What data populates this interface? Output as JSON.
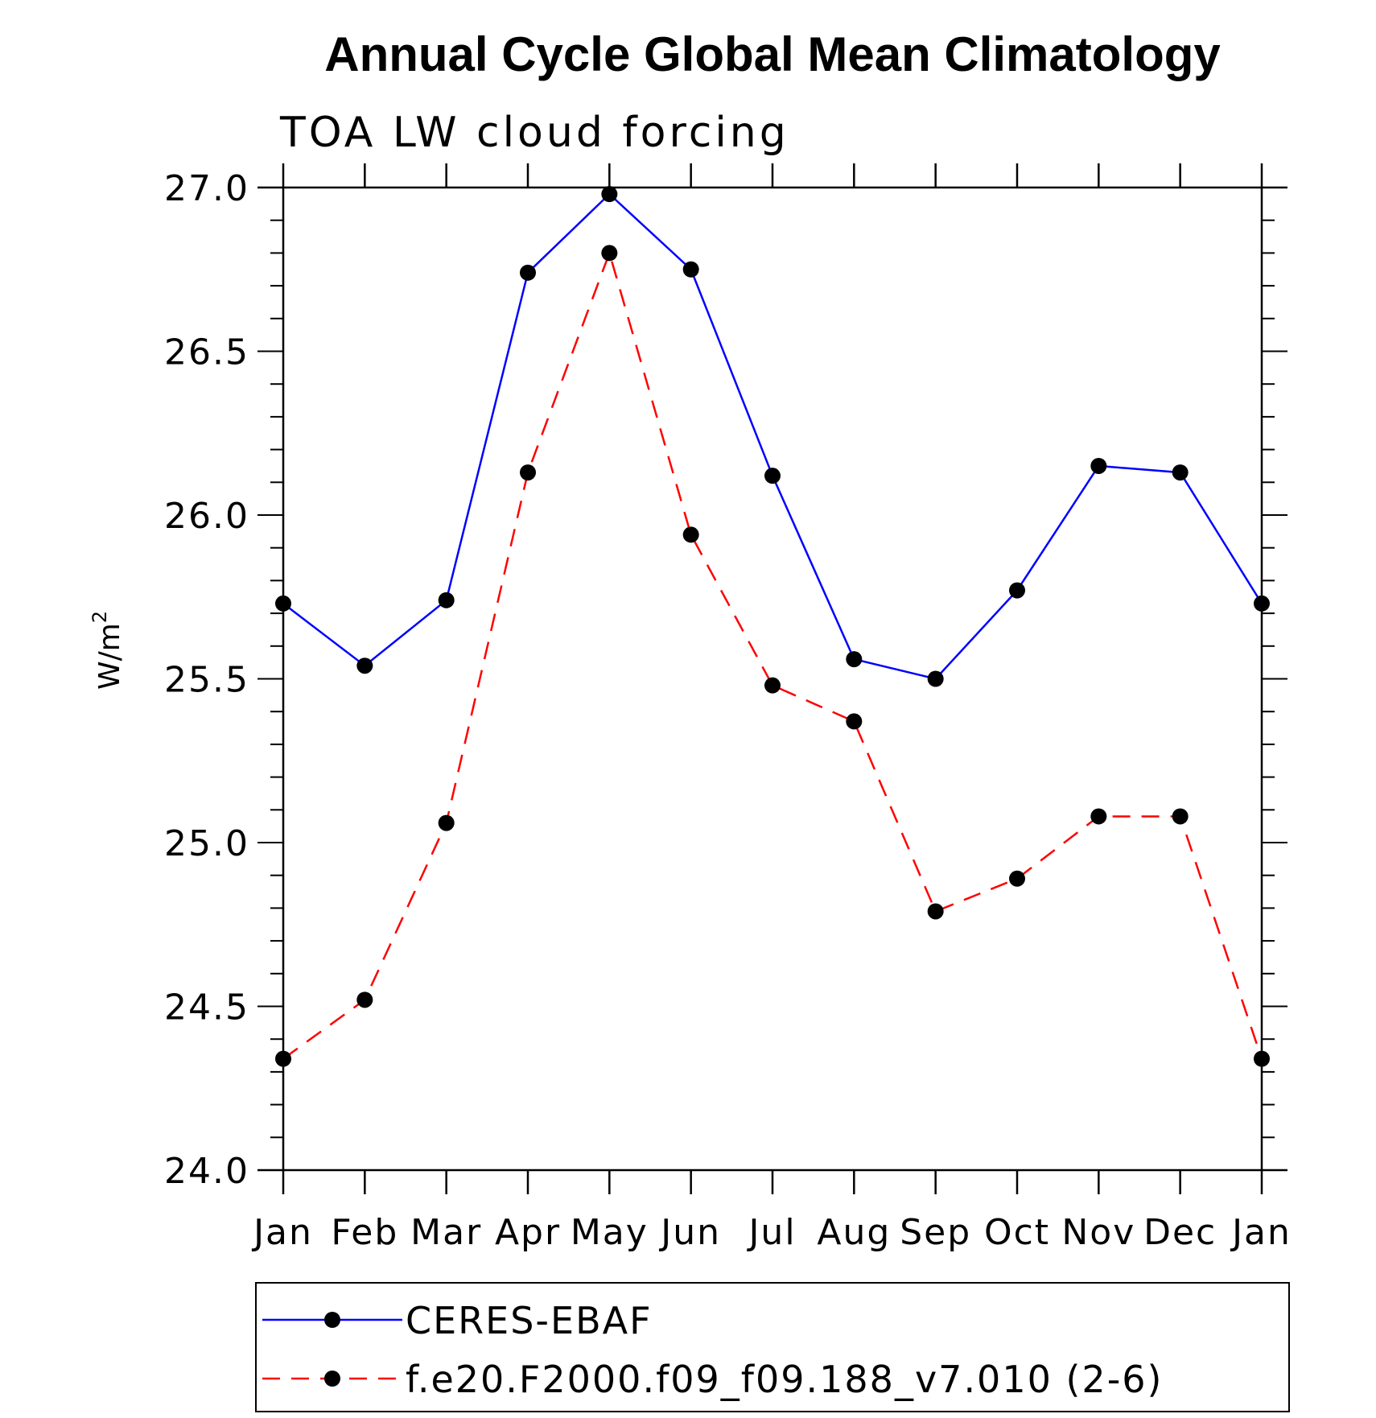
{
  "chart_data": {
    "type": "line",
    "title": "Annual Cycle Global Mean Climatology",
    "subtitle": "TOA LW cloud forcing",
    "ylabel": "W/m",
    "ylabel_superscript": "2",
    "xlabel": "",
    "categories": [
      "Jan",
      "Feb",
      "Mar",
      "Apr",
      "May",
      "Jun",
      "Jul",
      "Aug",
      "Sep",
      "Oct",
      "Nov",
      "Dec",
      "Jan"
    ],
    "ylim": [
      24.0,
      27.0
    ],
    "yticks": [
      "24.0",
      "24.5",
      "25.0",
      "25.5",
      "26.0",
      "26.5",
      "27.0"
    ],
    "ytick_values": [
      24.0,
      24.5,
      25.0,
      25.5,
      26.0,
      26.5,
      27.0
    ],
    "series": [
      {
        "name": "CERES-EBAF",
        "color": "#0000ff",
        "style": "solid",
        "values": [
          25.73,
          25.54,
          25.74,
          26.74,
          26.98,
          26.75,
          26.12,
          25.56,
          25.5,
          25.77,
          26.15,
          26.13,
          25.73
        ]
      },
      {
        "name": "f.e20.F2000.f09_f09.188_v7.010 (2-6)",
        "color": "#ff0000",
        "style": "dashed",
        "values": [
          24.34,
          24.52,
          25.06,
          26.13,
          26.8,
          25.94,
          25.48,
          25.37,
          24.79,
          24.89,
          25.08,
          25.08,
          24.34
        ]
      }
    ],
    "legend_position": "bottom",
    "grid": false
  }
}
